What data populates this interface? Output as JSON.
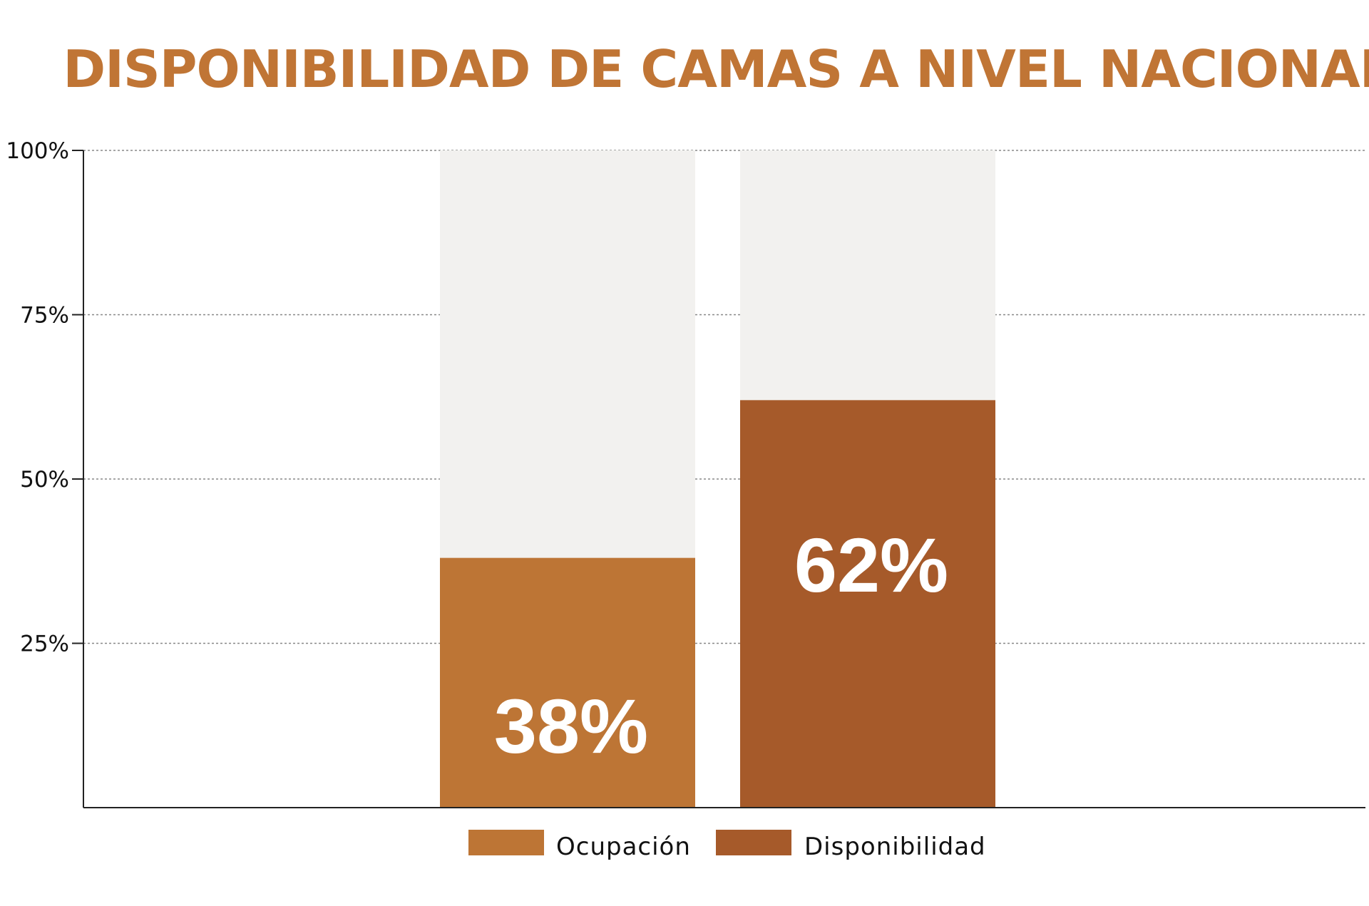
{
  "chart_data": {
    "type": "bar",
    "title": "DISPONIBILIDAD DE CAMAS A NIVEL NACIONAL",
    "categories": [
      "Ocupación",
      "Disponibilidad"
    ],
    "values": [
      38,
      62
    ],
    "value_labels": [
      "38%",
      "62%"
    ],
    "ylim": [
      0,
      100
    ],
    "yticks": [
      {
        "value": 25,
        "label": "25%"
      },
      {
        "value": 50,
        "label": "50%"
      },
      {
        "value": 75,
        "label": "75%"
      },
      {
        "value": 100,
        "label": "100%"
      }
    ],
    "grid": true,
    "legend_position": "bottom",
    "legend": [
      "Ocupación",
      "Disponibilidad"
    ],
    "colors": {
      "title": "#C07535",
      "ocupacion": "#BD7535",
      "disponibilidad": "#A65A2A",
      "background_bar": "#F2F1EF",
      "grid": "#888888",
      "axis": "#222222"
    }
  }
}
